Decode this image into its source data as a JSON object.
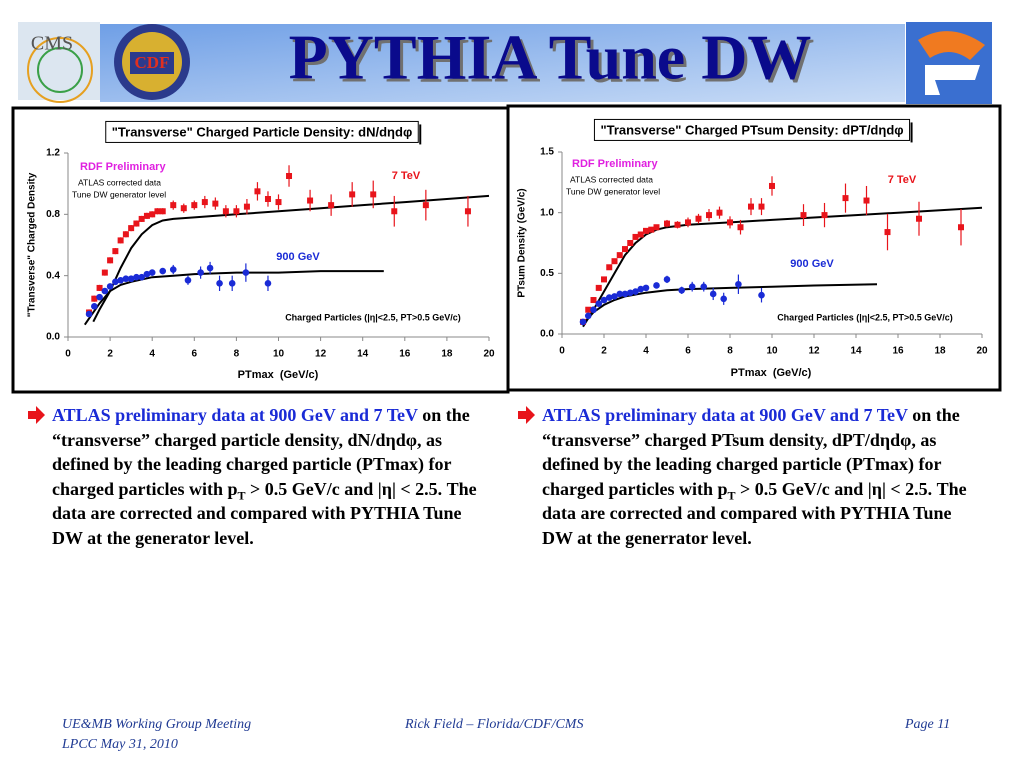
{
  "header": {
    "title": "PYTHIA Tune DW",
    "logos": [
      "CMS",
      "CDF"
    ]
  },
  "chart_data": [
    {
      "type": "scatter",
      "title": "\"Transverse\" Charged Particle Density: dN/dηdφ",
      "x_label": "PTmax  (GeV/c)",
      "y_label": "\"Transverse\" Charged Density",
      "annotations": [
        "RDF Preliminary",
        "ATLAS corrected data",
        "Tune DW generator level",
        "Charged Particles (|η|<2.5, PT>0.5 GeV/c)"
      ],
      "xlim": [
        0,
        20
      ],
      "xticks": [
        0,
        2,
        4,
        6,
        8,
        10,
        12,
        14,
        16,
        18,
        20
      ],
      "ylim": [
        0,
        1.2
      ],
      "yticks": [
        {
          "value": 0,
          "label": "0.0"
        },
        0.4,
        0.8,
        1.2
      ],
      "grid": false,
      "series": [
        {
          "name": "7 TeV",
          "color": "#e8141b",
          "marker": "square",
          "x": [
            1,
            1.25,
            1.5,
            1.75,
            2,
            2.25,
            2.5,
            2.75,
            3,
            3.25,
            3.5,
            3.75,
            4,
            4.25,
            4.5,
            5,
            5.5,
            6,
            6.5,
            7,
            7.5,
            8,
            8.5,
            9,
            9.5,
            10,
            10.5,
            11.5,
            12.5,
            13.5,
            14.5,
            15.5,
            17,
            19
          ],
          "values": [
            0.16,
            0.25,
            0.32,
            0.42,
            0.5,
            0.56,
            0.63,
            0.67,
            0.71,
            0.74,
            0.77,
            0.79,
            0.8,
            0.82,
            0.82,
            0.86,
            0.84,
            0.86,
            0.88,
            0.87,
            0.82,
            0.82,
            0.85,
            0.95,
            0.9,
            0.88,
            1.05,
            0.89,
            0.86,
            0.93,
            0.93,
            0.82,
            0.86,
            0.82
          ],
          "errors": [
            0.02,
            0.02,
            0.02,
            0.02,
            0.02,
            0.02,
            0.02,
            0.02,
            0.02,
            0.02,
            0.02,
            0.02,
            0.02,
            0.02,
            0.02,
            0.03,
            0.03,
            0.03,
            0.04,
            0.04,
            0.04,
            0.04,
            0.05,
            0.06,
            0.05,
            0.05,
            0.07,
            0.07,
            0.07,
            0.08,
            0.09,
            0.1,
            0.1,
            0.1
          ]
        },
        {
          "name": "900 GeV",
          "color": "#1a2bd6",
          "marker": "circle",
          "x": [
            1,
            1.25,
            1.5,
            1.75,
            2,
            2.25,
            2.5,
            2.75,
            3,
            3.25,
            3.5,
            3.75,
            4,
            4.5,
            5,
            5.7,
            6.3,
            6.75,
            7.2,
            7.8,
            8.45,
            9.5
          ],
          "values": [
            0.15,
            0.2,
            0.26,
            0.3,
            0.33,
            0.36,
            0.37,
            0.38,
            0.38,
            0.39,
            0.39,
            0.41,
            0.42,
            0.43,
            0.44,
            0.37,
            0.42,
            0.45,
            0.35,
            0.35,
            0.42,
            0.35
          ],
          "errors": [
            0.01,
            0.01,
            0.01,
            0.01,
            0.01,
            0.01,
            0.01,
            0.01,
            0.01,
            0.01,
            0.01,
            0.02,
            0.02,
            0.02,
            0.03,
            0.03,
            0.04,
            0.04,
            0.05,
            0.05,
            0.06,
            0.05
          ]
        }
      ],
      "curves": [
        {
          "color": "#000000",
          "x": [
            1.2,
            1.5,
            2,
            2.5,
            3,
            3.5,
            4,
            4.5,
            5,
            6,
            8,
            10,
            12,
            14,
            16,
            18,
            20
          ],
          "values": [
            0.1,
            0.18,
            0.3,
            0.45,
            0.58,
            0.67,
            0.73,
            0.76,
            0.77,
            0.78,
            0.8,
            0.82,
            0.84,
            0.86,
            0.88,
            0.9,
            0.92
          ]
        },
        {
          "color": "#000000",
          "x": [
            0.8,
            1,
            1.5,
            2,
            2.5,
            3,
            4,
            5,
            6,
            8,
            10,
            12,
            15
          ],
          "values": [
            0.08,
            0.12,
            0.22,
            0.3,
            0.34,
            0.36,
            0.39,
            0.4,
            0.41,
            0.42,
            0.42,
            0.43,
            0.43
          ]
        }
      ]
    },
    {
      "type": "scatter",
      "title": "\"Transverse\" Charged PTsum Density: dPT/dηdφ",
      "x_label": "PTmax  (GeV/c)",
      "y_label": "PTsum Density (GeV/c)",
      "annotations": [
        "RDF Preliminary",
        "ATLAS corrected data",
        "Tune DW generator level",
        "Charged Particles (|η|<2.5, PT>0.5 GeV/c)"
      ],
      "xlim": [
        0,
        20
      ],
      "xticks": [
        0,
        2,
        4,
        6,
        8,
        10,
        12,
        14,
        16,
        18,
        20
      ],
      "ylim": [
        0,
        1.5
      ],
      "yticks": [
        {
          "value": 0,
          "label": "0.0"
        },
        0.5,
        {
          "value": 1,
          "label": "1.0"
        },
        1.5
      ],
      "grid": false,
      "series": [
        {
          "name": "7 TeV",
          "color": "#e8141b",
          "marker": "square",
          "x": [
            1,
            1.25,
            1.5,
            1.75,
            2,
            2.25,
            2.5,
            2.75,
            3,
            3.25,
            3.5,
            3.75,
            4,
            4.25,
            4.5,
            5,
            5.5,
            6,
            6.5,
            7,
            7.5,
            8,
            8.5,
            9,
            9.5,
            10,
            11.5,
            12.5,
            13.5,
            14.5,
            15.5,
            17,
            19
          ],
          "values": [
            0.1,
            0.2,
            0.28,
            0.38,
            0.45,
            0.55,
            0.6,
            0.65,
            0.7,
            0.75,
            0.8,
            0.82,
            0.85,
            0.86,
            0.88,
            0.91,
            0.9,
            0.92,
            0.95,
            0.98,
            1.0,
            0.92,
            0.88,
            1.05,
            1.05,
            1.22,
            0.98,
            0.98,
            1.12,
            1.1,
            0.84,
            0.95,
            0.88
          ],
          "errors": [
            0.02,
            0.02,
            0.02,
            0.02,
            0.02,
            0.02,
            0.02,
            0.02,
            0.02,
            0.02,
            0.02,
            0.02,
            0.02,
            0.02,
            0.02,
            0.03,
            0.03,
            0.04,
            0.04,
            0.05,
            0.05,
            0.05,
            0.06,
            0.07,
            0.07,
            0.08,
            0.09,
            0.1,
            0.12,
            0.12,
            0.15,
            0.14,
            0.15
          ]
        },
        {
          "name": "900 GeV",
          "color": "#1a2bd6",
          "marker": "circle",
          "x": [
            1,
            1.25,
            1.5,
            1.75,
            2,
            2.25,
            2.5,
            2.75,
            3,
            3.25,
            3.5,
            3.75,
            4,
            4.5,
            5,
            5.7,
            6.2,
            6.75,
            7.2,
            7.7,
            8.4,
            9.5
          ],
          "values": [
            0.1,
            0.15,
            0.2,
            0.25,
            0.28,
            0.3,
            0.31,
            0.33,
            0.33,
            0.34,
            0.35,
            0.37,
            0.38,
            0.4,
            0.45,
            0.36,
            0.39,
            0.39,
            0.33,
            0.29,
            0.41,
            0.32
          ],
          "errors": [
            0.01,
            0.01,
            0.01,
            0.01,
            0.01,
            0.01,
            0.01,
            0.01,
            0.01,
            0.01,
            0.01,
            0.02,
            0.02,
            0.02,
            0.03,
            0.03,
            0.04,
            0.04,
            0.05,
            0.05,
            0.08,
            0.06
          ]
        }
      ],
      "curves": [
        {
          "color": "#000000",
          "x": [
            1,
            1.5,
            2,
            2.5,
            3,
            3.5,
            4,
            4.5,
            5,
            6,
            8,
            10,
            12,
            14,
            16,
            18,
            20
          ],
          "values": [
            0.06,
            0.2,
            0.35,
            0.5,
            0.65,
            0.75,
            0.82,
            0.86,
            0.88,
            0.9,
            0.92,
            0.94,
            0.96,
            0.98,
            1.0,
            1.02,
            1.04
          ]
        },
        {
          "color": "#000000",
          "x": [
            1,
            1.5,
            2,
            2.5,
            3,
            4,
            5,
            6,
            8,
            10,
            12,
            15
          ],
          "values": [
            0.08,
            0.18,
            0.24,
            0.28,
            0.31,
            0.34,
            0.36,
            0.37,
            0.38,
            0.39,
            0.4,
            0.41
          ]
        }
      ]
    }
  ],
  "bullets": [
    {
      "highlight": "ATLAS preliminary data at  900 GeV and 7 TeV",
      "text": " on the “transverse” charged particle density, dN/dηdφ, as defined by the leading charged particle (PTmax) for charged particles with p",
      "sub": "T",
      "rest": " > 0.5 GeV/c and |η| < 2.5. The data are corrected and compared with PYTHIA Tune DW at the generator level."
    },
    {
      "highlight": "ATLAS preliminary data at  900 GeV and 7 TeV",
      "text": " on the “transverse” charged PTsum density, dPT/dηdφ, as defined by the leading charged particle (PTmax) for charged particles with p",
      "sub": "T",
      "rest": " > 0.5 GeV/c and |η| < 2.5. The data are corrected and compared with PYTHIA Tune DW at the generrator level."
    }
  ],
  "footer": {
    "meeting": "UE&MB Working Group Meeting",
    "date": "LPCC  May 31, 2010",
    "author": "Rick Field – Florida/CDF/CMS",
    "page": "Page 11"
  }
}
